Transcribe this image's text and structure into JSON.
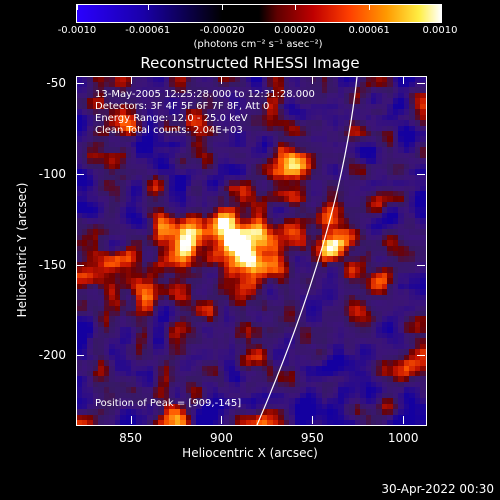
{
  "colorbar": {
    "tick_labels": [
      "-0.0010",
      "-0.00061",
      "-0.00020",
      "0.00020",
      "0.00061",
      "0.0010"
    ],
    "tick_values": [
      -0.001,
      -0.00061,
      -0.0002,
      0.0002,
      0.00061,
      0.001
    ],
    "units": "(photons cm⁻² s⁻¹ asec⁻²)"
  },
  "plot": {
    "title": "Reconstructed RHESSI Image",
    "annotations": [
      "13-May-2005 12:25:28.000 to 12:31:28.000",
      "Detectors: 3F 4F 5F 6F 7F 8F, Att 0",
      "Energy Range: 12.0 - 25.0 keV",
      "Clean    Total counts: 2.04E+03"
    ],
    "peak_label": "Position of Peak = [909,-145]",
    "xlabel": "Heliocentric X (arcsec)",
    "ylabel": "Heliocentric Y (arcsec)",
    "x_ticks": [
      "850",
      "900",
      "950",
      "1000"
    ],
    "x_tick_values": [
      850,
      900,
      950,
      1000
    ],
    "y_ticks": [
      "-50",
      "-100",
      "-150",
      "-200"
    ],
    "y_tick_values": [
      -50,
      -100,
      -150,
      -200
    ],
    "xlim": [
      820,
      1012
    ],
    "ylim": [
      -238,
      -46
    ]
  },
  "footer": {
    "date": "30-Apr-2022 00:30"
  }
}
